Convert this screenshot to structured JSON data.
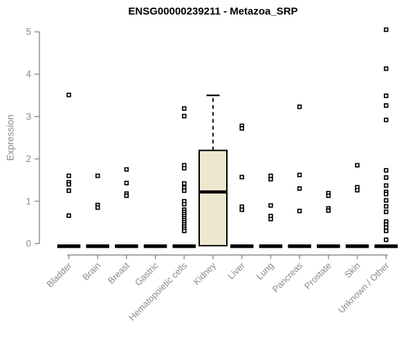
{
  "chart_data": {
    "type": "boxplot",
    "title": "ENSG00000239211 - Metazoa_SRP",
    "ylabel": "Expression",
    "ylim": [
      0,
      5
    ],
    "yticks": [
      0,
      1,
      2,
      3,
      4,
      5
    ],
    "grid": false,
    "legend": false,
    "categories": [
      "Bladder",
      "Brain",
      "Breast",
      "Gastric",
      "Hematopoietic cells",
      "Kidney",
      "Liver",
      "Lung",
      "Pancreas",
      "Prostate",
      "Skin",
      "Unknown / Other"
    ],
    "boxes": [
      {
        "category": "Bladder",
        "q1": 0,
        "median": 0,
        "q3": 0,
        "whisker_low": 0,
        "whisker_high": 0,
        "outliers": [
          3.51,
          1.6,
          1.45,
          1.4,
          1.25,
          0.66
        ]
      },
      {
        "category": "Brain",
        "q1": 0,
        "median": 0,
        "q3": 0,
        "whisker_low": 0,
        "whisker_high": 0,
        "outliers": [
          1.6,
          0.91,
          0.85
        ]
      },
      {
        "category": "Breast",
        "q1": 0,
        "median": 0,
        "q3": 0,
        "whisker_low": 0,
        "whisker_high": 0,
        "outliers": [
          1.75,
          1.43,
          1.18,
          1.13
        ]
      },
      {
        "category": "Gastric",
        "q1": 0,
        "median": 0,
        "q3": 0,
        "whisker_low": 0,
        "whisker_high": 0,
        "outliers": []
      },
      {
        "category": "Hematopoietic cells",
        "q1": 0,
        "median": 0,
        "q3": 0,
        "whisker_low": 0,
        "whisker_high": 0,
        "outliers": [
          3.19,
          3.01,
          1.85,
          1.78,
          1.42,
          1.32,
          1.25,
          1.0,
          0.93,
          0.8,
          0.75,
          0.7,
          0.65,
          0.6,
          0.55,
          0.5,
          0.45,
          0.4,
          0.35,
          0.3
        ]
      },
      {
        "category": "Kidney",
        "q1": 0,
        "median": 1.22,
        "q3": 2.2,
        "whisker_low": 0,
        "whisker_high": 3.5,
        "outliers": []
      },
      {
        "category": "Liver",
        "q1": 0,
        "median": 0,
        "q3": 0,
        "whisker_low": 0,
        "whisker_high": 0,
        "outliers": [
          2.78,
          2.72,
          1.57,
          0.87,
          0.8
        ]
      },
      {
        "category": "Lung",
        "q1": 0,
        "median": 0,
        "q3": 0,
        "whisker_low": 0,
        "whisker_high": 0,
        "outliers": [
          1.6,
          1.52,
          0.9,
          0.65,
          0.58
        ]
      },
      {
        "category": "Pancreas",
        "q1": 0,
        "median": 0,
        "q3": 0,
        "whisker_low": 0,
        "whisker_high": 0,
        "outliers": [
          3.23,
          1.62,
          1.3,
          0.77
        ]
      },
      {
        "category": "Prostate",
        "q1": 0,
        "median": 0,
        "q3": 0,
        "whisker_low": 0,
        "whisker_high": 0,
        "outliers": [
          1.19,
          1.13,
          0.83,
          0.78
        ]
      },
      {
        "category": "Skin",
        "q1": 0,
        "median": 0,
        "q3": 0,
        "whisker_low": 0,
        "whisker_high": 0,
        "outliers": [
          1.85,
          1.33,
          1.26
        ]
      },
      {
        "category": "Unknown / Other",
        "q1": 0,
        "median": 0,
        "q3": 0,
        "whisker_low": 0,
        "whisker_high": 0,
        "outliers": [
          5.05,
          4.13,
          3.49,
          3.26,
          2.92,
          1.73,
          1.56,
          1.37,
          1.22,
          1.17,
          1.02,
          0.88,
          0.75,
          0.52,
          0.45,
          0.38,
          0.3,
          0.09
        ]
      }
    ],
    "colors": {
      "box_fill": "#EDE8CD",
      "box_border": "#000000",
      "median": "#000000",
      "whisker": "#000000",
      "outlier_stroke": "#000000",
      "outlier_fill": "#FFFFFF",
      "axis": "#8A8A8A",
      "tick_text": "#8A8A8A",
      "title_text": "#000000",
      "background": "#FFFFFF"
    }
  }
}
